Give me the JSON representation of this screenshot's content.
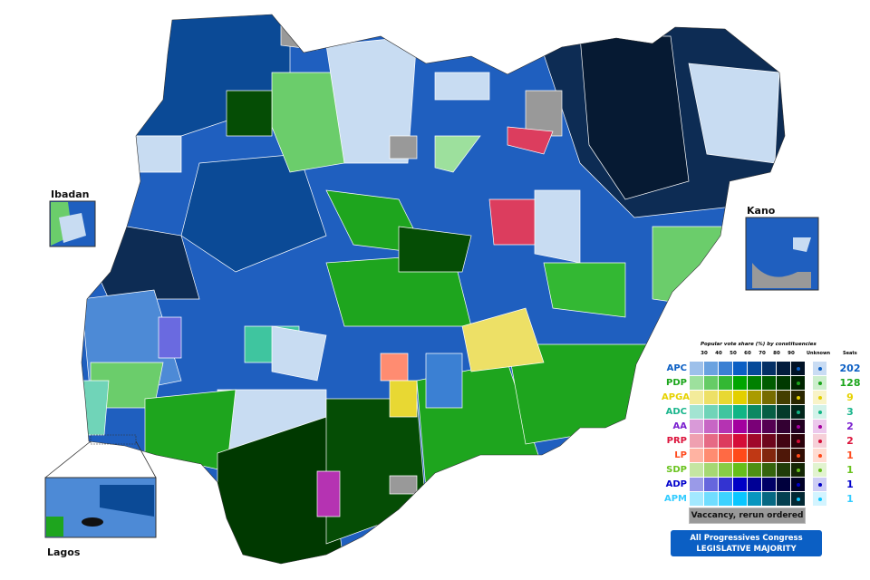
{
  "map": {
    "insets": [
      "Ibadan",
      "Kano",
      "Lagos"
    ],
    "colors": {
      "apc_navy": "#0d2c54",
      "apc_dark": "#0b4a96",
      "apc_mid": "#1f5fbf",
      "apc_light": "#4d8ad6",
      "pdp_dark": "#054d05",
      "pdp": "#1ea51e",
      "pdp_light": "#6bcd6b",
      "vacancy": "#999999",
      "unknown_apc": "#c8dcf2"
    }
  },
  "legend": {
    "header": "Popular vote share (%) by constituencies",
    "ticks": [
      "30",
      "40",
      "50",
      "60",
      "70",
      "80",
      "90"
    ],
    "unknown_label": "Unknown",
    "seats_label": "Seats",
    "parties": [
      {
        "name": "APC",
        "seats": "202",
        "label_color": "#0b5fc4",
        "shades": [
          "#9dc0ea",
          "#6aa2e0",
          "#3b80d3",
          "#0b5fc4",
          "#064a99",
          "#043066",
          "#021c3d",
          "#011226"
        ],
        "unknown": "#c9dcf3",
        "dot": "#0b5fc4"
      },
      {
        "name": "PDP",
        "seats": "128",
        "label_color": "#1aa51a",
        "shades": [
          "#9de09d",
          "#66cc66",
          "#33b833",
          "#00a500",
          "#008000",
          "#005c00",
          "#003900",
          "#002400"
        ],
        "unknown": "#cdeecd",
        "dot": "#1aa51a"
      },
      {
        "name": "APGA",
        "seats": "9",
        "label_color": "#e6d200",
        "shades": [
          "#f3eb9a",
          "#ede066",
          "#e8d833",
          "#e3cf00",
          "#aa9b00",
          "#776c00",
          "#443e00",
          "#2a2600"
        ],
        "unknown": "#f8f3c8",
        "dot": "#e3cf00"
      },
      {
        "name": "ADC",
        "seats": "3",
        "label_color": "#19b58c",
        "shades": [
          "#a3e4d2",
          "#70d4b8",
          "#3fc59f",
          "#10b585",
          "#0b8862",
          "#075e44",
          "#043a2a",
          "#02251b"
        ],
        "unknown": "#d3f2e9",
        "dot": "#10b585"
      },
      {
        "name": "AA",
        "seats": "2",
        "label_color": "#7a1fcf",
        "shades": [
          "#d99ad8",
          "#c766c5",
          "#b533b2",
          "#a3009f",
          "#7a0077",
          "#540052",
          "#330032",
          "#220021"
        ],
        "unknown": "#ecc9ec",
        "dot": "#a3009f"
      },
      {
        "name": "PRP",
        "seats": "2",
        "label_color": "#dc143c",
        "shades": [
          "#efa0b0",
          "#e66a85",
          "#dd3b5e",
          "#d50d38",
          "#a0092a",
          "#6e061d",
          "#420312",
          "#2b020b"
        ],
        "unknown": "#f6d0d8",
        "dot": "#d50d38"
      },
      {
        "name": "LP",
        "seats": "1",
        "label_color": "#ff4c1f",
        "shades": [
          "#ffb3a2",
          "#ff8c71",
          "#ff6a44",
          "#ff4a1a",
          "#c03814",
          "#82260d",
          "#4e1708",
          "#320e05"
        ],
        "unknown": "#ffdcd2",
        "dot": "#ff4a1a"
      },
      {
        "name": "SDP",
        "seats": "1",
        "label_color": "#6ac31e",
        "shades": [
          "#c5e6a2",
          "#a6d873",
          "#87cc45",
          "#66bf1a",
          "#4d9013",
          "#35640d",
          "#203c08",
          "#142605"
        ],
        "unknown": "#e2f3d0",
        "dot": "#66bf1a"
      },
      {
        "name": "ADP",
        "seats": "1",
        "label_color": "#0000cc",
        "shades": [
          "#9a9ae8",
          "#6666dd",
          "#3333d1",
          "#0000c6",
          "#000095",
          "#000066",
          "#00003d",
          "#000027"
        ],
        "unknown": "#cdcdf4",
        "dot": "#0000c6"
      },
      {
        "name": "APM",
        "seats": "1",
        "label_color": "#33ccff",
        "shades": [
          "#a3e9ff",
          "#70ddff",
          "#3dd2ff",
          "#0ac6ff",
          "#0896bf",
          "#066883",
          "#043f50",
          "#022833"
        ],
        "unknown": "#d3f4ff",
        "dot": "#0ac6ff"
      }
    ],
    "vacancy": "Vaccancy, rerun ordered",
    "majority_line1": "All Progressives Congress",
    "majority_line2": "LEGISLATIVE MAJORITY"
  }
}
